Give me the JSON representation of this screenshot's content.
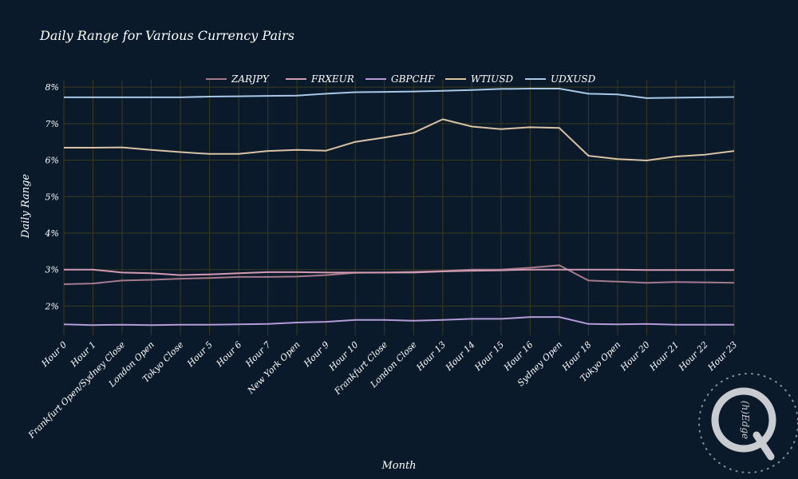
{
  "colors": {
    "background": "#0b1a2a",
    "grid": "#3b3a1e",
    "text": "#ffffff"
  },
  "watermark": {
    "text": "(h)Edge"
  },
  "chart_data": {
    "type": "line",
    "title": "Daily Range for Various Currency Pairs",
    "xlabel": "Month",
    "ylabel": "Daily Range",
    "ylim": [
      1.2,
      8.2
    ],
    "yticks": [
      "2%",
      "3%",
      "4%",
      "5%",
      "6%",
      "7%",
      "8%"
    ],
    "grid": true,
    "legend_position": "top",
    "categories": [
      "Hour 0",
      "Hour 1",
      "Frankfurt Open/Sydney Close",
      "London Open",
      "Tokyo Close",
      "Hour 5",
      "Hour 6",
      "Hour 7",
      "New York Open",
      "Hour 9",
      "Hour 10",
      "Frankfurt Close",
      "London Close",
      "Hour 13",
      "Hour 14",
      "Hour 15",
      "Hour 16",
      "Sydney Open",
      "Hour 18",
      "Tokyo Open",
      "Hour 20",
      "Hour 21",
      "Hour 22",
      "Hour 23"
    ],
    "series": [
      {
        "name": "ZARJPY",
        "color": "#a57a8c",
        "values": [
          2.6,
          2.62,
          2.7,
          2.72,
          2.75,
          2.77,
          2.8,
          2.8,
          2.81,
          2.85,
          2.91,
          2.92,
          2.94,
          2.96,
          3.0,
          3.0,
          3.05,
          3.12,
          2.7,
          2.67,
          2.64,
          2.66,
          2.65,
          2.64
        ]
      },
      {
        "name": "FRXEUR",
        "color": "#d49ab3",
        "values": [
          3.0,
          3.0,
          2.92,
          2.9,
          2.85,
          2.87,
          2.9,
          2.93,
          2.93,
          2.92,
          2.92,
          2.92,
          2.92,
          2.95,
          2.97,
          2.98,
          3.0,
          3.0,
          3.0,
          3.0,
          2.99,
          2.99,
          2.99,
          2.99
        ]
      },
      {
        "name": "GBPCHF",
        "color": "#b49ad9",
        "values": [
          1.5,
          1.48,
          1.49,
          1.48,
          1.49,
          1.49,
          1.5,
          1.51,
          1.55,
          1.57,
          1.62,
          1.62,
          1.6,
          1.62,
          1.65,
          1.65,
          1.7,
          1.7,
          1.51,
          1.5,
          1.51,
          1.49,
          1.49,
          1.49
        ]
      },
      {
        "name": "WTIUSD",
        "color": "#d9c3a5",
        "values": [
          6.34,
          6.34,
          6.35,
          6.28,
          6.22,
          6.17,
          6.17,
          6.25,
          6.28,
          6.26,
          6.5,
          6.62,
          6.75,
          7.12,
          6.92,
          6.85,
          6.9,
          6.88,
          6.12,
          6.03,
          5.99,
          6.1,
          6.15,
          6.25
        ]
      },
      {
        "name": "UDXUSD",
        "color": "#a9c8e8",
        "values": [
          7.72,
          7.72,
          7.72,
          7.72,
          7.72,
          7.74,
          7.75,
          7.76,
          7.77,
          7.82,
          7.86,
          7.87,
          7.88,
          7.9,
          7.92,
          7.95,
          7.96,
          7.96,
          7.82,
          7.8,
          7.7,
          7.71,
          7.72,
          7.73
        ]
      }
    ]
  }
}
